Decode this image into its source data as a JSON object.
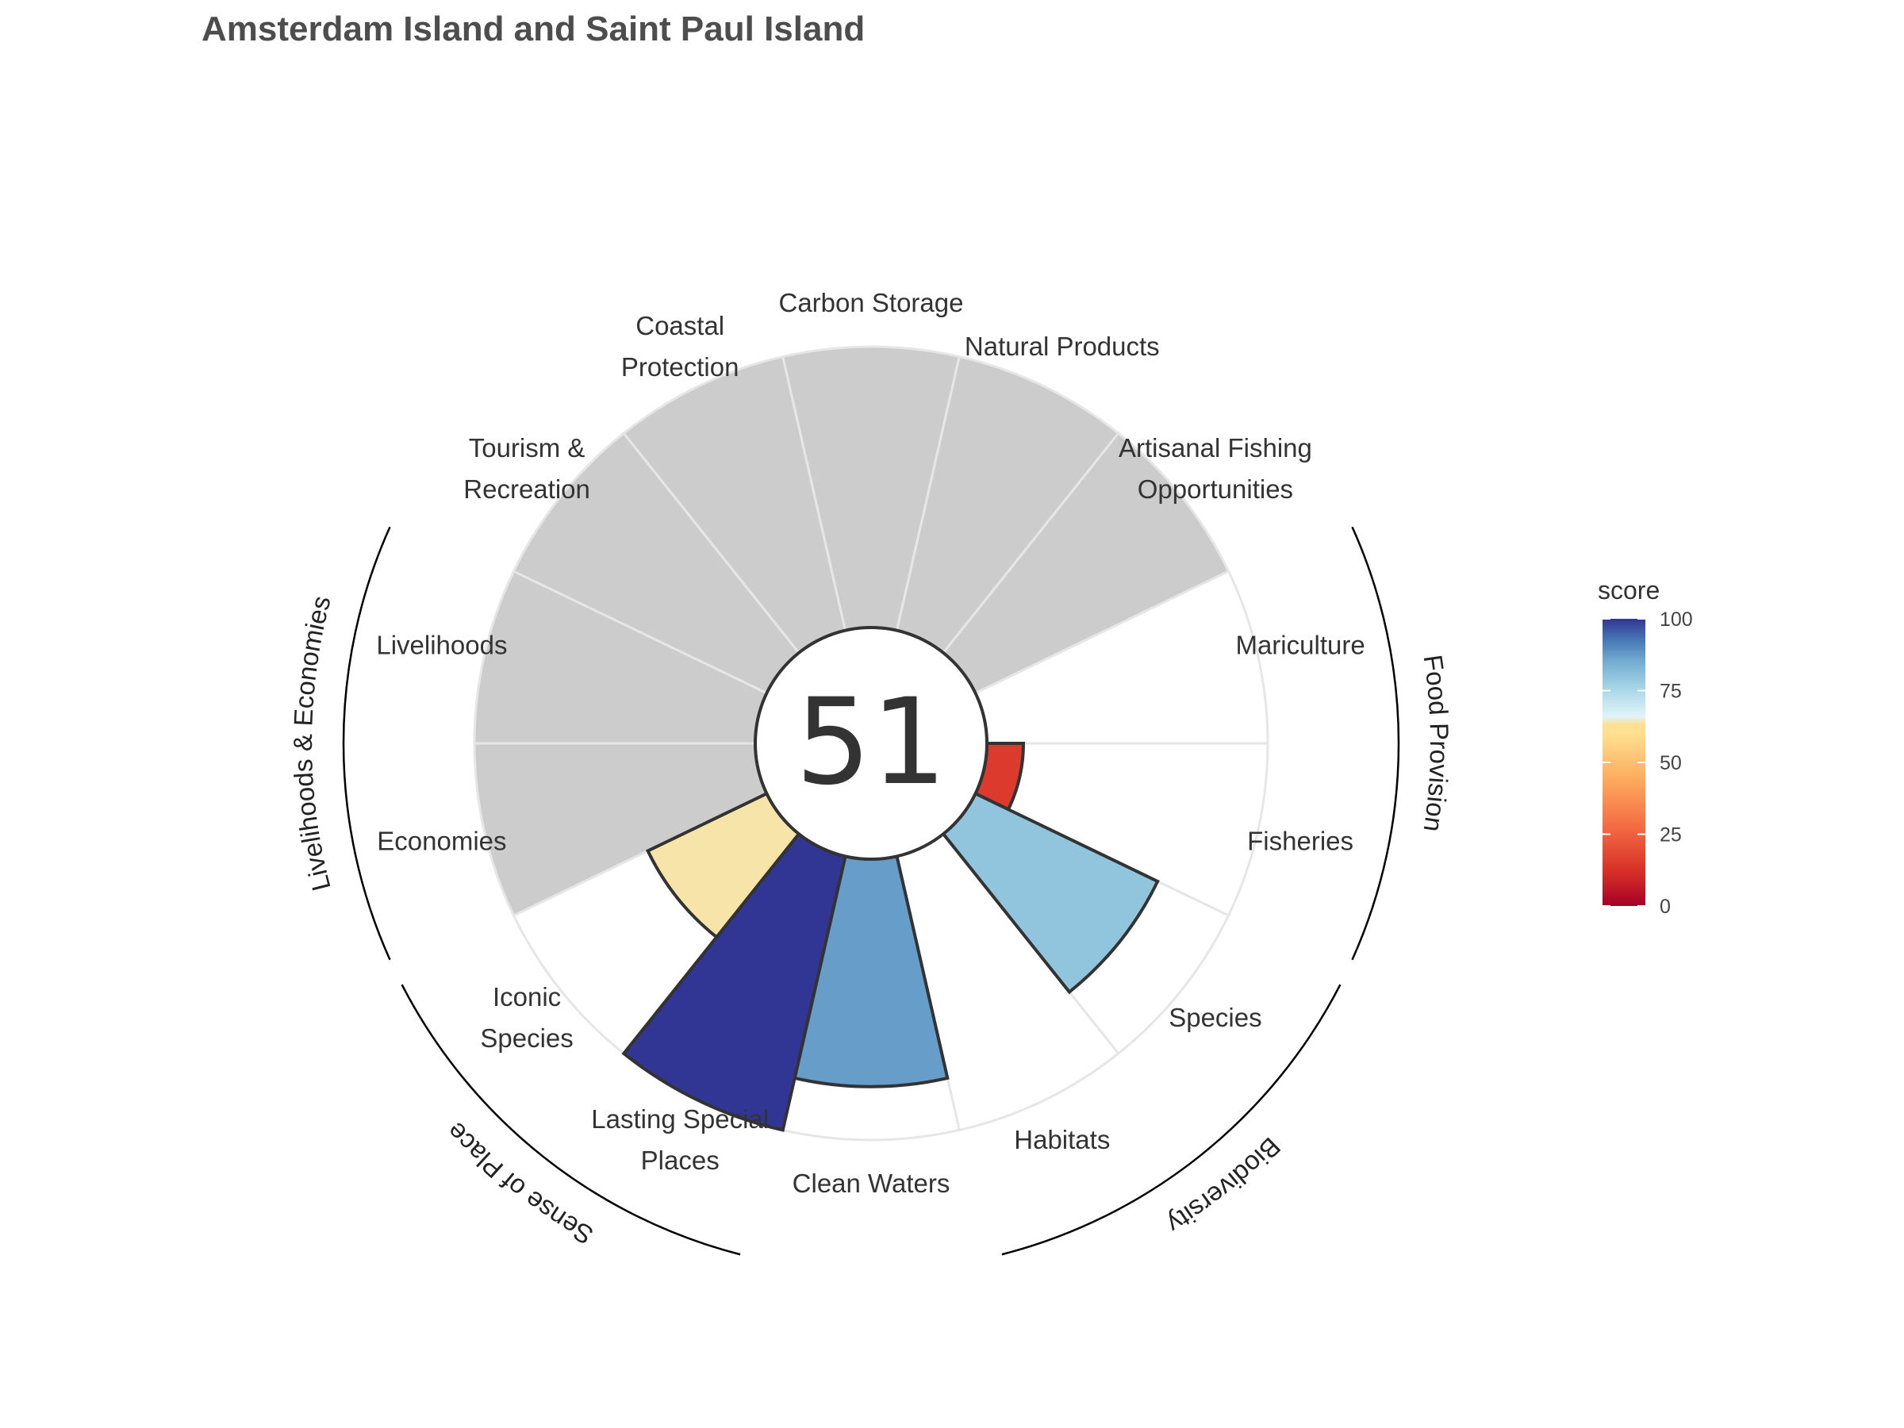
{
  "chart_data": {
    "type": "polar-bar",
    "title": "Amsterdam Island and Saint Paul Island",
    "center_score": "51",
    "score_max": 100,
    "goals": [
      {
        "label": [
          "Fisheries"
        ],
        "score": 13,
        "has_data": true
      },
      {
        "label": [
          "Species"
        ],
        "score": 72,
        "has_data": true
      },
      {
        "label": [
          "Habitats"
        ],
        "score": null,
        "has_data": true
      },
      {
        "label": [
          "Clean Waters"
        ],
        "score": 81,
        "has_data": true
      },
      {
        "label": [
          "Lasting Special",
          "Places"
        ],
        "score": 100,
        "has_data": true
      },
      {
        "label": [
          "Iconic",
          "Species"
        ],
        "score": 47,
        "has_data": true
      },
      {
        "label": [
          "Economies"
        ],
        "score": null,
        "has_data": false
      },
      {
        "label": [
          "Livelihoods"
        ],
        "score": null,
        "has_data": false
      },
      {
        "label": [
          "Tourism &",
          "Recreation"
        ],
        "score": null,
        "has_data": false
      },
      {
        "label": [
          "Coastal",
          "Protection"
        ],
        "score": null,
        "has_data": false
      },
      {
        "label": [
          "Carbon Storage"
        ],
        "score": null,
        "has_data": false
      },
      {
        "label": [
          "Natural Products"
        ],
        "score": null,
        "has_data": false
      },
      {
        "label": [
          "Artisanal Fishing",
          "Opportunities"
        ],
        "score": null,
        "has_data": false
      },
      {
        "label": [
          "Mariculture"
        ],
        "score": null,
        "has_data": true
      }
    ],
    "groups": [
      {
        "name": "Food Provision",
        "goals": [
          "Fisheries",
          "Mariculture"
        ]
      },
      {
        "name": "Biodiversity",
        "goals": [
          "Species",
          "Habitats"
        ]
      },
      {
        "name": "Sense of Place",
        "goals": [
          "Iconic Species",
          "Lasting Special Places"
        ]
      },
      {
        "name": "Livelihoods & Economies",
        "goals": [
          "Livelihoods",
          "Economies"
        ]
      }
    ],
    "legend": {
      "title": "score",
      "ticks": [
        0,
        25,
        50,
        75,
        100
      ],
      "colors": [
        "#a50026",
        "#d73027",
        "#f46d43",
        "#fdae61",
        "#fee090",
        "#e0f3f8",
        "#abd9e9",
        "#74add1",
        "#4575b4",
        "#313695"
      ]
    },
    "no_data_color": "#cccccc"
  }
}
